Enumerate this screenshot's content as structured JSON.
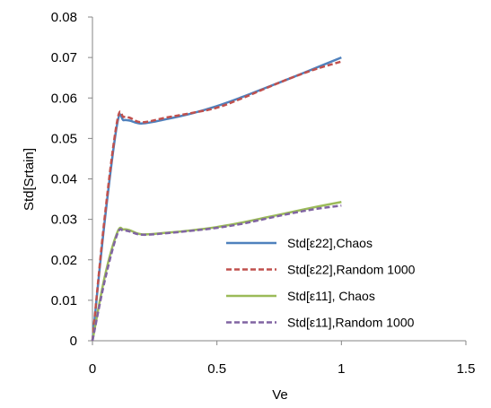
{
  "chart_data": {
    "type": "line",
    "title": "",
    "xlabel": "Ve",
    "ylabel": "Std[Srtain]",
    "xlim": [
      0,
      1.5
    ],
    "ylim": [
      0,
      0.08
    ],
    "xticks": [
      0,
      0.5,
      1,
      1.5
    ],
    "xtick_labels": [
      "0",
      "0.5",
      "1",
      "1.5"
    ],
    "yticks": [
      0,
      0.01,
      0.02,
      0.03,
      0.04,
      0.05,
      0.06,
      0.07,
      0.08
    ],
    "ytick_labels": [
      "0",
      "0.01",
      "0.02",
      "0.03",
      "0.04",
      "0.05",
      "0.06",
      "0.07",
      "0.08"
    ],
    "grid": false,
    "legend_position": "bottom-right",
    "series": [
      {
        "name": "Std[ε22],Chaos",
        "color": "#4F81BD",
        "dash": "solid",
        "x": [
          0,
          0.05,
          0.1,
          0.125,
          0.15,
          0.2,
          0.3,
          0.4,
          0.5,
          0.6,
          0.7,
          0.8,
          0.9,
          1.0
        ],
        "y": [
          0,
          0.03,
          0.0538,
          0.0545,
          0.0544,
          0.0537,
          0.0548,
          0.0562,
          0.058,
          0.0602,
          0.0626,
          0.065,
          0.0675,
          0.07
        ]
      },
      {
        "name": "Std[ε22],Random 1000",
        "color": "#C0504D",
        "dash": "dashed",
        "x": [
          0,
          0.05,
          0.1,
          0.125,
          0.15,
          0.2,
          0.3,
          0.4,
          0.5,
          0.6,
          0.7,
          0.8,
          0.9,
          1.0
        ],
        "y": [
          0,
          0.031,
          0.0545,
          0.0553,
          0.0551,
          0.054,
          0.0552,
          0.0563,
          0.0576,
          0.0599,
          0.0625,
          0.065,
          0.0672,
          0.069
        ]
      },
      {
        "name": "Std[ε11], Chaos",
        "color": "#9BBB59",
        "dash": "solid",
        "x": [
          0,
          0.05,
          0.1,
          0.125,
          0.15,
          0.2,
          0.3,
          0.4,
          0.5,
          0.6,
          0.7,
          0.8,
          0.9,
          1.0
        ],
        "y": [
          0,
          0.016,
          0.0268,
          0.0275,
          0.0273,
          0.0263,
          0.0267,
          0.0273,
          0.0281,
          0.0292,
          0.0305,
          0.0318,
          0.0331,
          0.0343
        ]
      },
      {
        "name": "Std[ε11],Random 1000",
        "color": "#8064A2",
        "dash": "dashed",
        "x": [
          0,
          0.05,
          0.1,
          0.125,
          0.15,
          0.2,
          0.3,
          0.4,
          0.5,
          0.6,
          0.7,
          0.8,
          0.9,
          1.0
        ],
        "y": [
          0,
          0.015,
          0.0264,
          0.0272,
          0.027,
          0.0262,
          0.0266,
          0.0272,
          0.0279,
          0.0289,
          0.0302,
          0.0315,
          0.0326,
          0.0334
        ]
      }
    ]
  }
}
